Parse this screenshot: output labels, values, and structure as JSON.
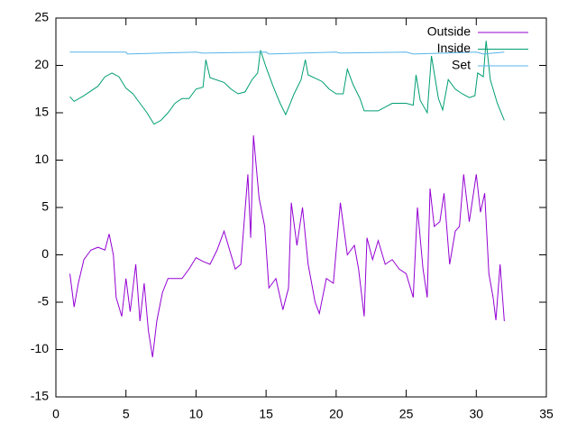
{
  "chart_data": {
    "type": "line",
    "xlim": [
      0,
      35
    ],
    "xticks": [
      0,
      5,
      10,
      15,
      20,
      25,
      30,
      35
    ],
    "ylim": [
      -15,
      25
    ],
    "yticks": [
      -15,
      -10,
      -5,
      0,
      5,
      10,
      15,
      20,
      25
    ],
    "legend": "top-right",
    "series": [
      {
        "name": "Outside",
        "color": "#9400d3",
        "x": [
          1,
          1.3,
          1.6,
          2,
          2.5,
          3,
          3.5,
          3.8,
          4.1,
          4.3,
          4.7,
          5,
          5.3,
          5.7,
          6,
          6.3,
          6.6,
          6.9,
          7.2,
          7.6,
          8,
          9,
          9.5,
          10,
          10.5,
          11,
          11.5,
          12,
          12.4,
          12.8,
          13.2,
          13.7,
          13.9,
          14.1,
          14.5,
          14.9,
          15.2,
          15.7,
          16.2,
          16.6,
          16.8,
          17.2,
          17.6,
          18,
          18.5,
          18.8,
          19.3,
          19.8,
          20.3,
          20.8,
          21.3,
          21.6,
          22,
          22.2,
          22.6,
          23,
          23.5,
          24,
          24.5,
          25,
          25.5,
          25.8,
          26.2,
          26.5,
          26.7,
          27,
          27.4,
          27.7,
          28.1,
          28.5,
          28.8,
          29.1,
          29.5,
          30,
          30.3,
          30.6,
          30.9,
          31.2,
          31.4,
          31.7,
          31.9,
          32
        ],
        "values": [
          -2,
          -5.5,
          -3,
          -0.5,
          0.5,
          0.8,
          0.5,
          2.2,
          0,
          -4.5,
          -6.5,
          -2.5,
          -6,
          -1,
          -7,
          -3,
          -8,
          -10.8,
          -7,
          -4,
          -2.5,
          -2.5,
          -1.5,
          -0.3,
          -0.7,
          -1,
          0.5,
          2.5,
          0.5,
          -1.5,
          -1,
          8.5,
          1.8,
          12.6,
          6,
          3,
          -3.5,
          -2.5,
          -5.8,
          -3.5,
          5.5,
          1,
          5,
          -1,
          -5,
          -6.2,
          -2.5,
          -3,
          5.5,
          0,
          1,
          -1.5,
          -6.5,
          1.8,
          -0.5,
          1.5,
          -1,
          -0.5,
          -1.5,
          -2,
          -4.5,
          5,
          -1.5,
          -4.5,
          7,
          3,
          3.5,
          6.5,
          -1,
          2.5,
          3,
          8.5,
          3.5,
          8.5,
          4.5,
          6.5,
          -2,
          -4.5,
          -6.9,
          -1,
          -5,
          -7
        ]
      },
      {
        "name": "Inside",
        "color": "#009e73",
        "x": [
          1,
          1.3,
          2,
          3,
          3.5,
          4,
          4.5,
          5,
          5.5,
          6,
          6.5,
          7,
          7.5,
          8,
          8.5,
          9,
          9.5,
          10,
          10.5,
          10.7,
          11,
          12,
          12.5,
          13,
          13.5,
          14,
          14.4,
          14.6,
          15,
          15.5,
          16,
          16.4,
          17,
          17.5,
          17.8,
          18,
          19,
          19.5,
          20,
          20.5,
          20.8,
          21.2,
          21.7,
          22,
          23,
          24,
          25,
          25.5,
          25.7,
          26,
          26.5,
          26.8,
          27.3,
          27.6,
          28,
          28.5,
          29,
          29.5,
          29.9,
          30.1,
          30.5,
          30.7,
          31,
          31.5,
          32
        ],
        "values": [
          16.7,
          16.2,
          16.8,
          17.8,
          18.8,
          19.2,
          18.8,
          17.6,
          17,
          16,
          15,
          13.8,
          14.2,
          15,
          16,
          16.5,
          16.5,
          17.5,
          17.7,
          20.6,
          18.7,
          18.2,
          17.5,
          17,
          17.2,
          18.5,
          19.2,
          21.6,
          19.8,
          17.8,
          16,
          14.8,
          17,
          18.5,
          20.6,
          19,
          18.3,
          17.5,
          17,
          17,
          19.6,
          18,
          16.5,
          15.2,
          15.2,
          16,
          16,
          15.8,
          19,
          16.3,
          15,
          21,
          16.5,
          15.3,
          18.5,
          17.5,
          17,
          16.6,
          16.8,
          19.2,
          18.8,
          22.6,
          18.5,
          16,
          14.2
        ]
      },
      {
        "name": "Set",
        "color": "#56b4e9",
        "x": [
          1,
          5,
          5.1,
          10,
          10.5,
          15,
          15.2,
          20,
          20.3,
          25,
          25.5,
          30,
          30.5,
          32
        ],
        "values": [
          21.4,
          21.4,
          21.2,
          21.4,
          21.3,
          21.4,
          21.2,
          21.4,
          21.3,
          21.4,
          21.2,
          21.4,
          21.2,
          21.4
        ]
      }
    ]
  }
}
